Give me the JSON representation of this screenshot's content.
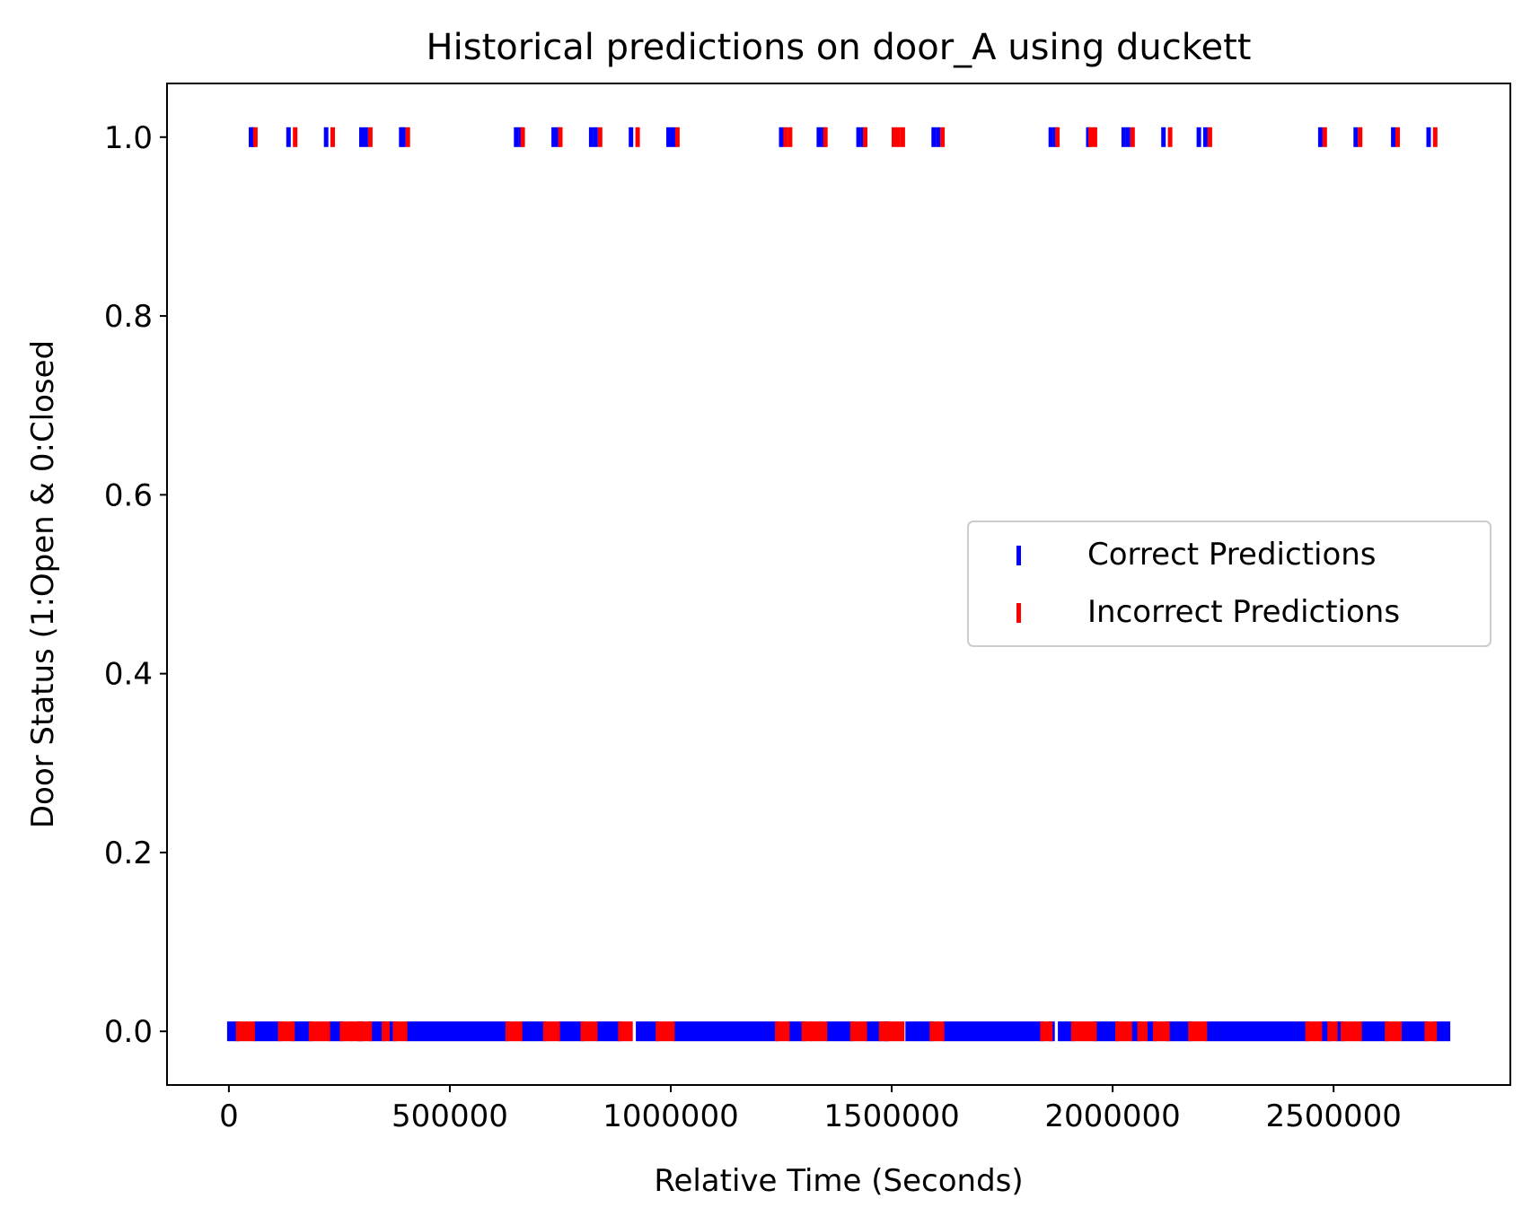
{
  "colors": {
    "correct": "#0000ff",
    "incorrect": "#ff0000",
    "axis": "#000000",
    "background": "#ffffff",
    "legend_border": "#cccccc"
  },
  "chart_data": {
    "type": "scatter",
    "title": "Historical predictions on door_A using duckett",
    "xlabel": "Relative Time (Seconds)",
    "ylabel": "Door Status (1:Open & 0:Closed",
    "xlim": [
      -140000,
      2900000
    ],
    "ylim": [
      -0.06,
      1.06
    ],
    "xticks": [
      0,
      500000,
      1000000,
      1500000,
      2000000,
      2500000
    ],
    "xtick_labels": [
      "0",
      "500000",
      "1000000",
      "1500000",
      "2000000",
      "2500000"
    ],
    "yticks": [
      0.0,
      0.2,
      0.4,
      0.6,
      0.8,
      1.0
    ],
    "ytick_labels": [
      "0.0",
      "0.2",
      "0.4",
      "0.6",
      "0.8",
      "1.0"
    ],
    "grid": false,
    "legend_position": "center-right",
    "marker": "vertical-line",
    "series": [
      {
        "name": "Correct Predictions",
        "color": "#0000ff",
        "y1_times": [
          50000,
          55000,
          135000,
          220000,
          300000,
          310000,
          390000,
          395000,
          650000,
          660000,
          735000,
          745000,
          820000,
          830000,
          910000,
          995000,
          1005000,
          1250000,
          1335000,
          1345000,
          1425000,
          1435000,
          1595000,
          1605000,
          1860000,
          1870000,
          1945000,
          2025000,
          2035000,
          2115000,
          2195000,
          2210000,
          2470000,
          2550000,
          2635000,
          2715000
        ],
        "y0_ranges": [
          [
            0,
            20000
          ],
          [
            60000,
            115000
          ],
          [
            145000,
            185000
          ],
          [
            230000,
            255000
          ],
          [
            295000,
            300000
          ],
          [
            320000,
            350000
          ],
          [
            365000,
            375000
          ],
          [
            405000,
            630000
          ],
          [
            665000,
            715000
          ],
          [
            750000,
            800000
          ],
          [
            835000,
            885000
          ],
          [
            925000,
            970000
          ],
          [
            1010000,
            1240000
          ],
          [
            1270000,
            1300000
          ],
          [
            1355000,
            1410000
          ],
          [
            1445000,
            1475000
          ],
          [
            1485000,
            1490000
          ],
          [
            1535000,
            1590000
          ],
          [
            1620000,
            1840000
          ],
          [
            1860000,
            1865000
          ],
          [
            1880000,
            1910000
          ],
          [
            1960000,
            2010000
          ],
          [
            2045000,
            2060000
          ],
          [
            2080000,
            2095000
          ],
          [
            2125000,
            2175000
          ],
          [
            2215000,
            2440000
          ],
          [
            2475000,
            2490000
          ],
          [
            2510000,
            2520000
          ],
          [
            2565000,
            2620000
          ],
          [
            2655000,
            2710000
          ],
          [
            2730000,
            2760000
          ]
        ]
      },
      {
        "name": "Incorrect Predictions",
        "color": "#ff0000",
        "y1_times": [
          60000,
          150000,
          235000,
          320000,
          405000,
          665000,
          750000,
          840000,
          925000,
          1015000,
          1260000,
          1270000,
          1350000,
          1440000,
          1505000,
          1515000,
          1525000,
          1615000,
          1875000,
          1950000,
          1960000,
          2045000,
          2130000,
          2220000,
          2480000,
          2560000,
          2645000,
          2730000
        ],
        "y0_ranges": [
          [
            20000,
            55000
          ],
          [
            115000,
            145000
          ],
          [
            185000,
            225000
          ],
          [
            255000,
            275000
          ],
          [
            280000,
            295000
          ],
          [
            300000,
            320000
          ],
          [
            350000,
            360000
          ],
          [
            375000,
            400000
          ],
          [
            630000,
            660000
          ],
          [
            715000,
            745000
          ],
          [
            800000,
            830000
          ],
          [
            885000,
            910000
          ],
          [
            970000,
            1005000
          ],
          [
            1240000,
            1265000
          ],
          [
            1300000,
            1315000
          ],
          [
            1320000,
            1350000
          ],
          [
            1410000,
            1440000
          ],
          [
            1475000,
            1485000
          ],
          [
            1490000,
            1525000
          ],
          [
            1590000,
            1615000
          ],
          [
            1840000,
            1860000
          ],
          [
            1910000,
            1960000
          ],
          [
            2010000,
            2040000
          ],
          [
            2060000,
            2075000
          ],
          [
            2095000,
            2125000
          ],
          [
            2175000,
            2210000
          ],
          [
            2440000,
            2470000
          ],
          [
            2490000,
            2505000
          ],
          [
            2520000,
            2560000
          ],
          [
            2620000,
            2650000
          ],
          [
            2710000,
            2730000
          ]
        ]
      }
    ]
  }
}
